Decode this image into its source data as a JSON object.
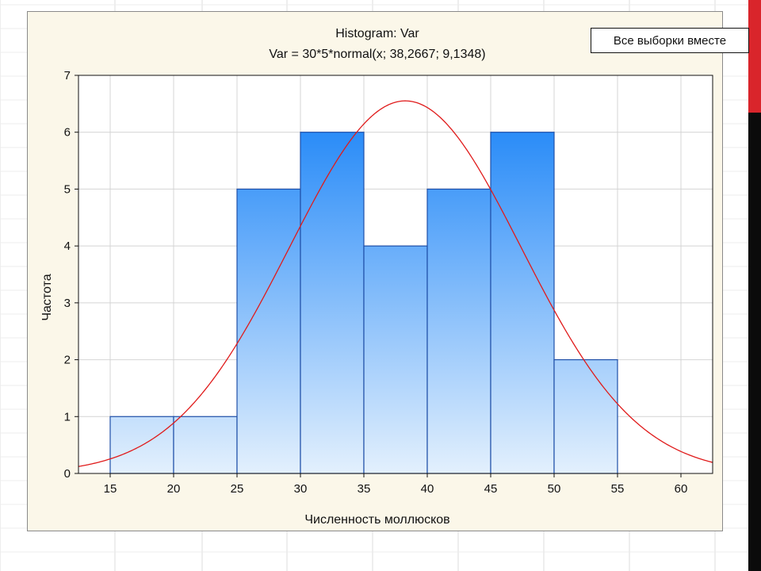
{
  "legend": "Все выборки вместе",
  "chart_data": {
    "type": "bar",
    "title": "Histogram: Var",
    "subtitle": "Var = 30*5*normal(x; 38,2667; 9,1348)",
    "xlabel": "Численность моллюсков",
    "ylabel": "Частота",
    "bins": [
      {
        "from": 15,
        "to": 20,
        "count": 1
      },
      {
        "from": 20,
        "to": 25,
        "count": 1
      },
      {
        "from": 25,
        "to": 30,
        "count": 5
      },
      {
        "from": 30,
        "to": 35,
        "count": 6
      },
      {
        "from": 35,
        "to": 40,
        "count": 4
      },
      {
        "from": 40,
        "to": 45,
        "count": 5
      },
      {
        "from": 45,
        "to": 50,
        "count": 6
      },
      {
        "from": 50,
        "to": 55,
        "count": 2
      }
    ],
    "x_ticks": [
      "15",
      "20",
      "25",
      "30",
      "35",
      "40",
      "45",
      "50",
      "55",
      "60"
    ],
    "y_ticks": [
      "0",
      "1",
      "2",
      "3",
      "4",
      "5",
      "6",
      "7"
    ],
    "xlim": [
      12.5,
      62.5
    ],
    "ylim": [
      0,
      7
    ],
    "fit_curve": {
      "type": "normal",
      "n": 30,
      "bin_width": 5,
      "mean": 38.2667,
      "sd": 9.1348,
      "color": "#e01b1b"
    },
    "bar_color_top": "#2a8cf8",
    "bar_color_bottom": "#e3f0fd",
    "bar_edge_color": "#1f4fa8",
    "grid": true
  }
}
